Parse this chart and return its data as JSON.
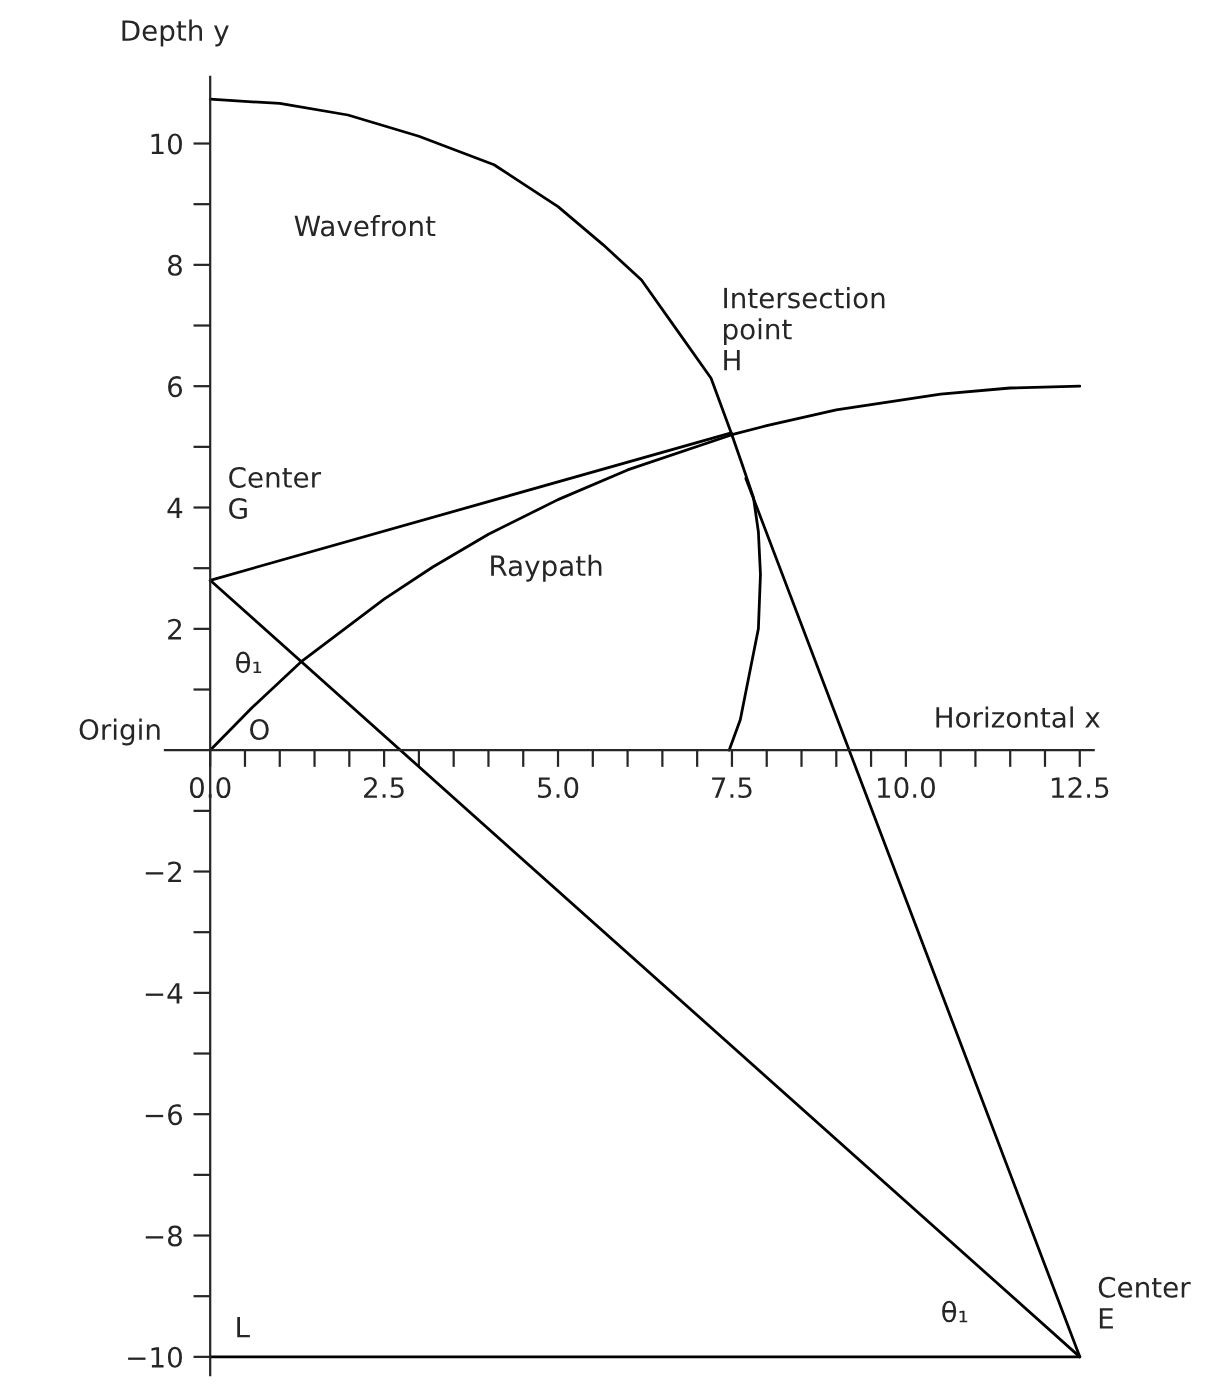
{
  "chart_data": {
    "type": "line",
    "xlabel": "Horizontal x",
    "ylabel": "Depth y",
    "xlim": [
      -0.65,
      12.7
    ],
    "ylim": [
      -10.3,
      11.1
    ],
    "xticks": [
      {
        "value": 0,
        "label": "0.0"
      },
      {
        "value": 0.5,
        "label": null
      },
      {
        "value": 1,
        "label": null
      },
      {
        "value": 1.5,
        "label": null
      },
      {
        "value": 2,
        "label": null
      },
      {
        "value": 2.5,
        "label": "2.5"
      },
      {
        "value": 3,
        "label": null
      },
      {
        "value": 3.5,
        "label": null
      },
      {
        "value": 4,
        "label": null
      },
      {
        "value": 4.5,
        "label": null
      },
      {
        "value": 5,
        "label": "5.0"
      },
      {
        "value": 5.5,
        "label": null
      },
      {
        "value": 6,
        "label": null
      },
      {
        "value": 6.5,
        "label": null
      },
      {
        "value": 7,
        "label": null
      },
      {
        "value": 7.5,
        "label": "7.5"
      },
      {
        "value": 8,
        "label": null
      },
      {
        "value": 8.5,
        "label": null
      },
      {
        "value": 9,
        "label": null
      },
      {
        "value": 9.5,
        "label": null
      },
      {
        "value": 10,
        "label": "10.0"
      },
      {
        "value": 10.5,
        "label": null
      },
      {
        "value": 11,
        "label": null
      },
      {
        "value": 11.5,
        "label": null
      },
      {
        "value": 12,
        "label": null
      },
      {
        "value": 12.5,
        "label": "12.5"
      }
    ],
    "yticks": [
      {
        "value": -10,
        "label": "−10"
      },
      {
        "value": -9,
        "label": null
      },
      {
        "value": -8,
        "label": "−8"
      },
      {
        "value": -7,
        "label": null
      },
      {
        "value": -6,
        "label": "−6"
      },
      {
        "value": -5,
        "label": null
      },
      {
        "value": -4,
        "label": "−4"
      },
      {
        "value": -3,
        "label": null
      },
      {
        "value": -2,
        "label": "−2"
      },
      {
        "value": -1,
        "label": null
      },
      {
        "value": 1,
        "label": null
      },
      2,
      {
        "value": 3,
        "label": null
      },
      4,
      {
        "value": 5,
        "label": null
      },
      6,
      {
        "value": 7,
        "label": null
      },
      8,
      {
        "value": 9,
        "label": null
      },
      10
    ],
    "grid": false,
    "marker": "none",
    "line_style": "solid",
    "series": [
      {
        "color": "#000000",
        "x": [
          0,
          1,
          1.98,
          3,
          4.08,
          5,
          5.65,
          6.2,
          6.7,
          7.2,
          7.49,
          7.65,
          7.81,
          7.88,
          7.91,
          7.88,
          7.75,
          7.62,
          7.46
        ],
        "values": [
          10.73,
          10.66,
          10.47,
          10.12,
          9.65,
          8.96,
          8.33,
          7.75,
          6.94,
          6.13,
          5.23,
          4.7,
          4.16,
          3.6,
          2.9,
          2.0,
          1.25,
          0.5,
          0
        ]
      },
      {
        "color": "#000000",
        "x": [
          0,
          0.6,
          1.3,
          2.5,
          3.2,
          4,
          5,
          6,
          7.5,
          8,
          9,
          10.5,
          11.5,
          12.5
        ],
        "values": [
          0,
          0.7,
          1.45,
          2.49,
          3.02,
          3.56,
          4.13,
          4.62,
          5.2,
          5.35,
          5.61,
          5.87,
          5.97,
          6.0
        ]
      },
      {
        "color": "#000000",
        "x": [
          0,
          7.49
        ],
        "values": [
          2.8,
          5.23
        ]
      },
      {
        "color": "#000000",
        "x": [
          0,
          12.5
        ],
        "values": [
          2.8,
          -10
        ]
      },
      {
        "color": "#000000",
        "x": [
          7.7,
          12.5
        ],
        "values": [
          4.48,
          -10
        ]
      },
      {
        "color": "#000000",
        "x": [
          0,
          12.5
        ],
        "values": [
          -10,
          -10
        ]
      }
    ],
    "annotations": [
      "Wavefront",
      "Intersection\npoint\nH",
      "Center\nG",
      "Raypath",
      "θ₁",
      "Origin",
      "O",
      "L",
      "θ₁",
      "Center\nE"
    ]
  }
}
